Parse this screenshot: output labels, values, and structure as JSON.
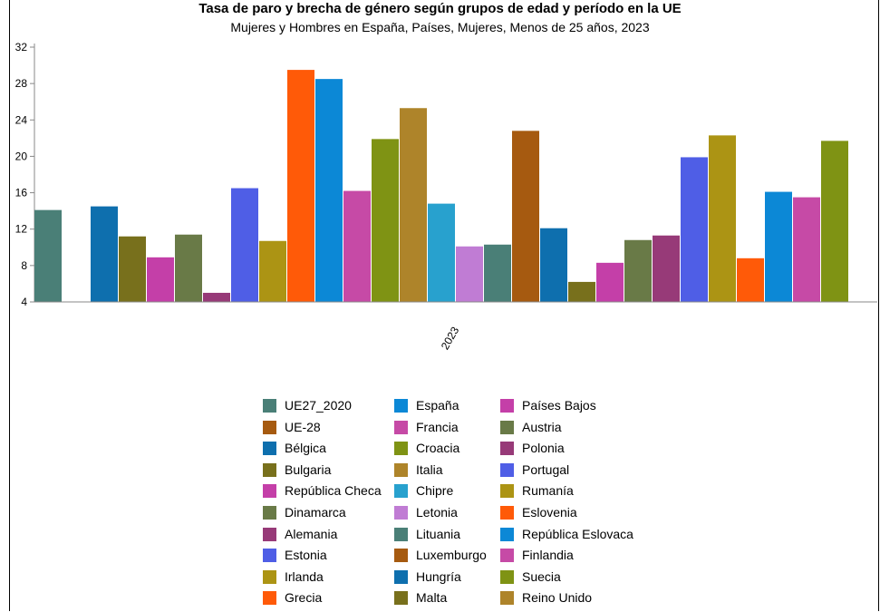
{
  "chart_data": {
    "type": "bar",
    "title": "Tasa de paro y brecha de género según grupos de edad y período en la UE",
    "subtitle": "Mujeres y Hombres en España, Países, Mujeres, Menos de 25 años, 2023",
    "categories": [
      "2023"
    ],
    "xlabel": "",
    "ylabel": "",
    "ylim": [
      4,
      32
    ],
    "yticks": [
      4,
      8,
      12,
      16,
      20,
      24,
      28,
      32
    ],
    "grid": false,
    "legend_position": "bottom",
    "series": [
      {
        "name": "UE27_2020",
        "values": [
          14.1
        ],
        "color": "#4a7f77"
      },
      {
        "name": "UE-28",
        "values": [
          null
        ],
        "color": "#a65a10"
      },
      {
        "name": "Bélgica",
        "values": [
          14.5
        ],
        "color": "#0e6fae"
      },
      {
        "name": "Bulgaria",
        "values": [
          11.2
        ],
        "color": "#78701c"
      },
      {
        "name": "República Checa",
        "values": [
          8.9
        ],
        "color": "#c43fa8"
      },
      {
        "name": "Dinamarca",
        "values": [
          11.4
        ],
        "color": "#697a47"
      },
      {
        "name": "Alemania",
        "values": [
          5.0
        ],
        "color": "#973a78"
      },
      {
        "name": "Estonia",
        "values": [
          16.5
        ],
        "color": "#4f5ee6"
      },
      {
        "name": "Irlanda",
        "values": [
          10.7
        ],
        "color": "#ac9414"
      },
      {
        "name": "Grecia",
        "values": [
          29.5
        ],
        "color": "#ff5a08"
      },
      {
        "name": "España",
        "values": [
          28.5
        ],
        "color": "#0c88d6"
      },
      {
        "name": "Francia",
        "values": [
          16.2
        ],
        "color": "#c64aa6"
      },
      {
        "name": "Croacia",
        "values": [
          21.9
        ],
        "color": "#7f9314"
      },
      {
        "name": "Italia",
        "values": [
          25.3
        ],
        "color": "#ae842a"
      },
      {
        "name": "Chipre",
        "values": [
          14.8
        ],
        "color": "#28a1ce"
      },
      {
        "name": "Letonia",
        "values": [
          10.1
        ],
        "color": "#c07cd4"
      },
      {
        "name": "Lituania",
        "values": [
          10.3
        ],
        "color": "#4a7f77"
      },
      {
        "name": "Luxemburgo",
        "values": [
          22.8
        ],
        "color": "#a65a10"
      },
      {
        "name": "Hungría",
        "values": [
          12.1
        ],
        "color": "#0e6fae"
      },
      {
        "name": "Malta",
        "values": [
          6.2
        ],
        "color": "#78701c"
      },
      {
        "name": "Países Bajos",
        "values": [
          8.3
        ],
        "color": "#c43fa8"
      },
      {
        "name": "Austria",
        "values": [
          10.8
        ],
        "color": "#697a47"
      },
      {
        "name": "Polonia",
        "values": [
          11.3
        ],
        "color": "#973a78"
      },
      {
        "name": "Portugal",
        "values": [
          19.9
        ],
        "color": "#4f5ee6"
      },
      {
        "name": "Rumanía",
        "values": [
          22.3
        ],
        "color": "#ac9414"
      },
      {
        "name": "Eslovenia",
        "values": [
          8.8
        ],
        "color": "#ff5a08"
      },
      {
        "name": "República Eslovaca",
        "values": [
          16.1
        ],
        "color": "#0c88d6"
      },
      {
        "name": "Finlandia",
        "values": [
          15.5
        ],
        "color": "#c64aa6"
      },
      {
        "name": "Suecia",
        "values": [
          21.7
        ],
        "color": "#7f9314"
      },
      {
        "name": "Reino Unido",
        "values": [
          null
        ],
        "color": "#ae842a"
      }
    ]
  }
}
